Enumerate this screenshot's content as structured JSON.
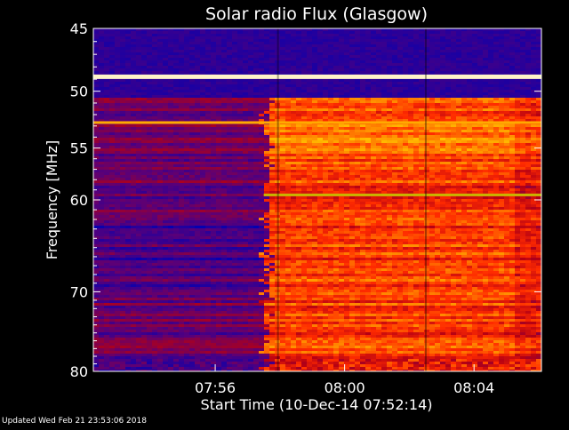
{
  "chart_data": {
    "type": "heatmap",
    "title": "Solar radio Flux (Glasgow)",
    "ylabel": "Frequency [MHz]",
    "xlabel": "Start Time (10-Dec-14 07:52:14)",
    "ylim": [
      45,
      80
    ],
    "y_scale": "log",
    "y_reversed": true,
    "y_ticks": [
      45,
      50,
      55,
      60,
      70,
      80
    ],
    "x_range": [
      "07:52:14",
      "08:06:05"
    ],
    "x_ticks": [
      "07:56",
      "08:00",
      "08:04"
    ],
    "colormap": [
      "#0000b4",
      "#5a0078",
      "#b40014",
      "#ff2a00",
      "#ff8a00",
      "#ffd000",
      "#ffffff"
    ],
    "features": {
      "burst_onset_time": "07:57:30",
      "strong_lines_mhz": [
        48.8,
        52.7,
        59.5
      ]
    }
  },
  "footer": {
    "updated": "Updated Wed Feb 21 23:53:06 2018"
  }
}
